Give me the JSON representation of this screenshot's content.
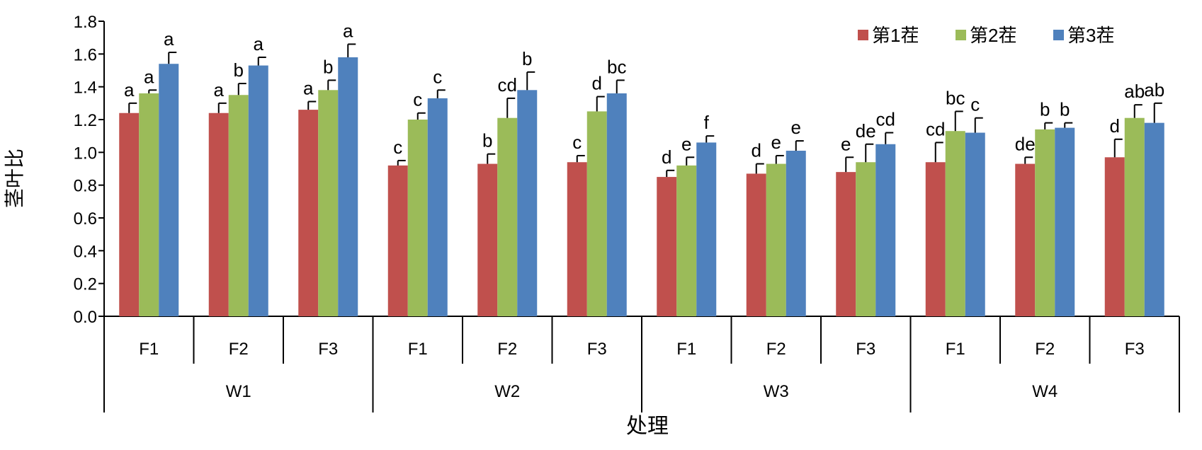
{
  "chart_data": {
    "type": "bar",
    "ylabel": "茎叶比",
    "xlabel": "处理",
    "ylim": [
      0,
      1.8
    ],
    "yticks": [
      "0.0",
      "0.2",
      "0.4",
      "0.6",
      "0.8",
      "1.0",
      "1.2",
      "1.4",
      "1.6",
      "1.8"
    ],
    "groups": [
      "W1",
      "W2",
      "W3",
      "W4"
    ],
    "categories": [
      "F1",
      "F2",
      "F3",
      "F1",
      "F2",
      "F3",
      "F1",
      "F2",
      "F3",
      "F1",
      "F2",
      "F3"
    ],
    "legend_position": "top-right",
    "series": [
      {
        "name": "第1茬",
        "color": "#c0504d",
        "values": [
          1.24,
          1.24,
          1.26,
          0.92,
          0.93,
          0.94,
          0.85,
          0.87,
          0.88,
          0.94,
          0.93,
          0.97
        ],
        "errors": [
          0.06,
          0.06,
          0.05,
          0.03,
          0.06,
          0.04,
          0.04,
          0.06,
          0.09,
          0.12,
          0.04,
          0.11
        ],
        "letters": [
          "a",
          "a",
          "a",
          "c",
          "b",
          "c",
          "d",
          "d",
          "e",
          "cd",
          "de",
          "d"
        ]
      },
      {
        "name": "第2茬",
        "color": "#9bbb59",
        "values": [
          1.36,
          1.35,
          1.38,
          1.2,
          1.21,
          1.25,
          0.92,
          0.93,
          0.94,
          1.13,
          1.14,
          1.21
        ],
        "errors": [
          0.02,
          0.07,
          0.06,
          0.04,
          0.12,
          0.09,
          0.05,
          0.05,
          0.11,
          0.12,
          0.04,
          0.08
        ],
        "letters": [
          "a",
          "b",
          "b",
          "c",
          "cd",
          "d",
          "e",
          "e",
          "de",
          "bc",
          "b",
          "ab"
        ]
      },
      {
        "name": "第3茬",
        "color": "#4f81bd",
        "values": [
          1.54,
          1.53,
          1.58,
          1.33,
          1.38,
          1.36,
          1.06,
          1.01,
          1.05,
          1.12,
          1.15,
          1.18
        ],
        "errors": [
          0.07,
          0.05,
          0.08,
          0.05,
          0.11,
          0.08,
          0.04,
          0.06,
          0.07,
          0.09,
          0.03,
          0.12
        ],
        "letters": [
          "a",
          "a",
          "a",
          "c",
          "b",
          "bc",
          "f",
          "e",
          "cd",
          "c",
          "b",
          "ab"
        ]
      }
    ]
  }
}
